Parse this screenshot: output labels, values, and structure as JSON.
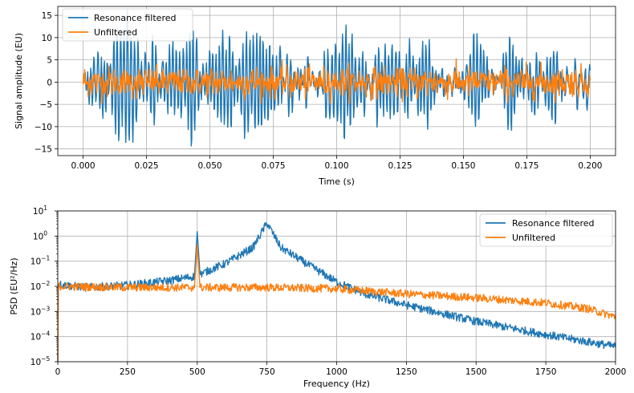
{
  "chart_data": [
    {
      "type": "line",
      "xlabel": "Time (s)",
      "ylabel": "Signal amplitude (EU)",
      "xlim": [
        -0.01,
        0.21
      ],
      "ylim": [
        -16.5,
        17
      ],
      "xticks": [
        0.0,
        0.025,
        0.05,
        0.075,
        0.1,
        0.125,
        0.15,
        0.175,
        0.2
      ],
      "xtick_labels": [
        "0.000",
        "0.025",
        "0.050",
        "0.075",
        "0.100",
        "0.125",
        "0.150",
        "0.175",
        "0.200"
      ],
      "yticks": [
        -15,
        -10,
        -5,
        0,
        5,
        10,
        15
      ],
      "ytick_labels": [
        "−15",
        "−10",
        "−5",
        "0",
        "5",
        "10",
        "15"
      ],
      "legend_position": "upper-left",
      "grid": true,
      "series": [
        {
          "name": "Resonance filtered",
          "color": "#1f77b4",
          "approx_range": [
            -15.2,
            16.2
          ],
          "resonance_hz": 750
        },
        {
          "name": "Unfiltered",
          "color": "#ff7f0e",
          "approx_range": [
            -5,
            6
          ]
        }
      ]
    },
    {
      "type": "line",
      "xlabel": "Frequency (Hz)",
      "ylabel": "PSD (EU²/Hz)",
      "yscale": "log",
      "xlim": [
        0,
        2000
      ],
      "ylim": [
        1e-05,
        10
      ],
      "xticks": [
        0,
        250,
        500,
        750,
        1000,
        1250,
        1500,
        1750,
        2000
      ],
      "xtick_labels": [
        "0",
        "250",
        "500",
        "750",
        "1000",
        "1250",
        "1500",
        "1750",
        "2000"
      ],
      "yticks_exp": [
        -5,
        -4,
        -3,
        -2,
        -1,
        0,
        1
      ],
      "legend_position": "upper-right",
      "grid": true,
      "series": [
        {
          "name": "Resonance filtered",
          "color": "#1f77b4",
          "x": [
            5,
            100,
            250,
            400,
            490,
            500,
            510,
            600,
            700,
            750,
            800,
            900,
            1000,
            1100,
            1250,
            1500,
            1750,
            2000
          ],
          "y": [
            0.012,
            0.009,
            0.011,
            0.017,
            0.025,
            1.5,
            0.03,
            0.08,
            0.35,
            3.3,
            0.35,
            0.07,
            0.015,
            0.005,
            0.0018,
            0.0004,
            0.00012,
            4e-05
          ]
        },
        {
          "name": "Unfiltered",
          "color": "#ff7f0e",
          "x": [
            5,
            250,
            490,
            500,
            510,
            750,
            1000,
            1250,
            1500,
            1750,
            1900,
            2000
          ],
          "y": [
            0.01,
            0.009,
            0.009,
            0.45,
            0.009,
            0.009,
            0.008,
            0.005,
            0.0035,
            0.0022,
            0.0013,
            0.0006
          ]
        }
      ]
    }
  ]
}
